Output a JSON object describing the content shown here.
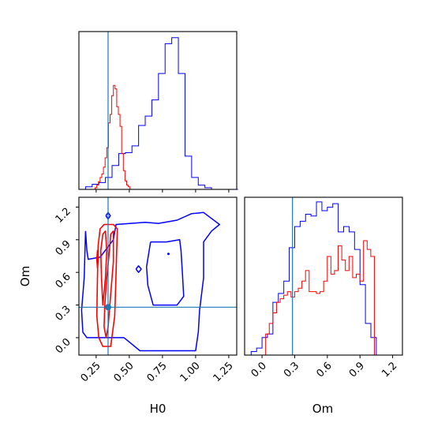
{
  "colors": {
    "blue": "#0000ff",
    "red": "#ff0000",
    "truth": "#1f77b4",
    "axis": "#000000"
  },
  "chart_data": {
    "type": "corner",
    "parameters": [
      "H0",
      "Om"
    ],
    "truth": {
      "H0": 0.34,
      "Om": 0.28
    },
    "xlabel": "H0",
    "ylabel": "Om",
    "xlabel_om": "Om",
    "ticks": {
      "H0": [
        0.25,
        0.5,
        0.75,
        1.0,
        1.25
      ],
      "H0_labels": [
        "0.25",
        "0.50",
        "0.75",
        "1.00",
        "1.25"
      ],
      "Om": [
        0.0,
        0.3,
        0.6,
        0.9,
        1.2
      ],
      "Om_labels": [
        "0.0",
        "0.3",
        "0.6",
        "0.9",
        "1.2"
      ]
    },
    "ranges": {
      "H0": [
        0.12,
        1.31
      ],
      "Om": [
        -0.16,
        1.29
      ]
    },
    "grid": false,
    "histograms": {
      "H0": {
        "bins_start": 0.12,
        "bin_width": 0.05,
        "series": [
          {
            "color": "blue",
            "values": [
              0,
              3,
              6,
              8,
              14,
              28,
              42,
              43,
              51,
              75,
              86,
              105,
              136,
              171,
              178,
              136,
              39,
              14,
              5,
              2,
              0,
              0,
              0,
              0
            ]
          },
          {
            "color": "red",
            "bins_start": 0.23,
            "bin_width": 0.0125,
            "values": [
              0,
              2,
              5,
              9,
              14,
              18,
              26,
              37,
              49,
              78,
              88,
              110,
              122,
              118,
              97,
              88,
              74,
              42,
              22,
              10,
              5,
              3
            ]
          }
        ]
      },
      "Om": {
        "bins_start": -0.1,
        "bin_width": 0.05,
        "series": [
          {
            "color": "blue",
            "values": [
              2,
              4,
              10,
              12,
              30,
              35,
              42,
              61,
              73,
              76,
              80,
              79,
              87,
              82,
              84,
              86,
              70,
              73,
              70,
              60,
              40,
              18,
              10,
              0
            ]
          },
          {
            "color": "red",
            "bins_start": 0.0,
            "bin_width": 0.0333,
            "values": [
              0,
              12,
              18,
              24,
              30,
              32,
              34,
              36,
              33,
              36,
              38,
              42,
              48,
              36,
              36,
              35,
              36,
              42,
              56,
              46,
              48,
              62,
              54,
              48,
              56,
              44,
              46,
              42,
              65,
              60,
              56
            ]
          }
        ]
      }
    },
    "contours_2d": {
      "x": "H0",
      "y": "Om",
      "series": [
        {
          "color": "blue",
          "level": "outer",
          "points": [
            [
              0.17,
              0.98
            ],
            [
              0.18,
              0.8
            ],
            [
              0.19,
              0.72
            ],
            [
              0.28,
              0.74
            ],
            [
              0.38,
              0.9
            ],
            [
              0.4,
              1.04
            ],
            [
              0.62,
              1.06
            ],
            [
              0.72,
              1.05
            ],
            [
              0.86,
              1.08
            ],
            [
              0.97,
              1.14
            ],
            [
              1.06,
              1.15
            ],
            [
              1.18,
              1.04
            ],
            [
              1.12,
              0.98
            ],
            [
              1.06,
              0.88
            ],
            [
              1.06,
              0.55
            ],
            [
              1.03,
              0.25
            ],
            [
              1.02,
              0.05
            ],
            [
              1.0,
              -0.12
            ],
            [
              0.58,
              -0.12
            ],
            [
              0.5,
              -0.04
            ],
            [
              0.46,
              0.0
            ],
            [
              0.27,
              0.0
            ],
            [
              0.22,
              0.0
            ],
            [
              0.18,
              0.0
            ],
            [
              0.15,
              0.05
            ],
            [
              0.14,
              0.25
            ],
            [
              0.16,
              0.55
            ],
            [
              0.17,
              0.98
            ]
          ]
        },
        {
          "color": "blue",
          "level": "inner",
          "points": [
            [
              0.66,
              0.88
            ],
            [
              0.78,
              0.88
            ],
            [
              0.88,
              0.9
            ],
            [
              0.89,
              0.8
            ],
            [
              0.9,
              0.6
            ],
            [
              0.91,
              0.38
            ],
            [
              0.86,
              0.3
            ],
            [
              0.68,
              0.3
            ],
            [
              0.64,
              0.48
            ],
            [
              0.63,
              0.65
            ],
            [
              0.66,
              0.88
            ]
          ]
        },
        {
          "color": "blue",
          "level": "island",
          "points": [
            [
              0.55,
              0.63
            ],
            [
              0.57,
              0.66
            ],
            [
              0.59,
              0.63
            ],
            [
              0.57,
              0.6
            ],
            [
              0.55,
              0.63
            ]
          ]
        },
        {
          "color": "blue",
          "level": "island",
          "points": [
            [
              0.323,
              1.12
            ],
            [
              0.34,
              1.15
            ],
            [
              0.357,
              1.12
            ],
            [
              0.34,
              1.09
            ],
            [
              0.323,
              1.12
            ]
          ]
        },
        {
          "color": "red",
          "level": "outer",
          "points": [
            [
              0.265,
              0.85
            ],
            [
              0.28,
              1.0
            ],
            [
              0.31,
              1.04
            ],
            [
              0.38,
              1.04
            ],
            [
              0.41,
              1.0
            ],
            [
              0.4,
              0.6
            ],
            [
              0.39,
              0.2
            ],
            [
              0.36,
              -0.08
            ],
            [
              0.3,
              -0.08
            ],
            [
              0.27,
              0.0
            ],
            [
              0.255,
              0.2
            ],
            [
              0.26,
              0.55
            ],
            [
              0.265,
              0.85
            ]
          ]
        },
        {
          "color": "red",
          "level": "inner",
          "points": [
            [
              0.315,
              0.3
            ],
            [
              0.33,
              0.55
            ],
            [
              0.35,
              0.8
            ],
            [
              0.36,
              0.95
            ],
            [
              0.38,
              0.98
            ],
            [
              0.38,
              0.7
            ],
            [
              0.36,
              0.4
            ],
            [
              0.34,
              0.1
            ],
            [
              0.325,
              0.0
            ],
            [
              0.31,
              0.1
            ],
            [
              0.315,
              0.3
            ]
          ]
        },
        {
          "color": "red",
          "level": "inner",
          "points": [
            [
              0.285,
              0.8
            ],
            [
              0.3,
              0.95
            ],
            [
              0.32,
              0.98
            ],
            [
              0.33,
              0.8
            ],
            [
              0.32,
              0.55
            ],
            [
              0.3,
              0.3
            ],
            [
              0.29,
              0.55
            ],
            [
              0.285,
              0.8
            ]
          ]
        },
        {
          "color": "red",
          "level": "island",
          "points": [
            [
              0.255,
              0.72
            ],
            [
              0.26,
              0.8
            ],
            [
              0.265,
              0.72
            ],
            [
              0.26,
              0.64
            ],
            [
              0.255,
              0.72
            ]
          ]
        }
      ],
      "markers": [
        {
          "x": 0.34,
          "y": 0.28,
          "color": "truth"
        },
        {
          "x": 0.795,
          "y": 0.77,
          "color": "blue"
        }
      ]
    }
  }
}
